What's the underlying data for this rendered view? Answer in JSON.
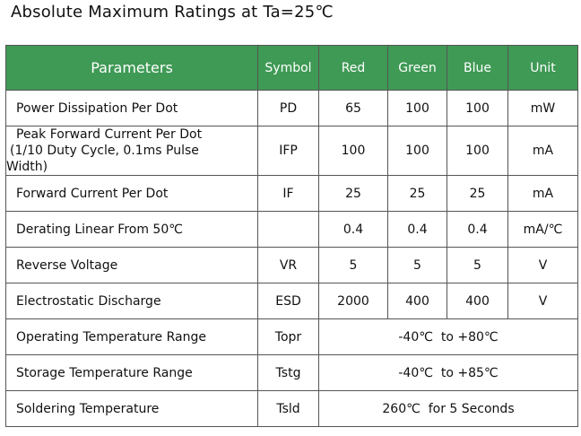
{
  "title": "Absolute Maximum Ratings at Ta=25℃",
  "header": {
    "parameters": "Parameters",
    "symbol": "Symbol",
    "red": "Red",
    "green": "Green",
    "blue": "Blue",
    "unit": "Unit"
  },
  "rows": [
    {
      "parameter": "Power Dissipation Per Dot",
      "symbol": "PD",
      "red": "65",
      "green": "100",
      "blue": "100",
      "unit": "mW"
    },
    {
      "parameter_lines": [
        "Peak Forward Current Per Dot",
        "(1/10 Duty Cycle, 0.1ms Pulse",
        "Width)"
      ],
      "symbol": "IFP",
      "red": "100",
      "green": "100",
      "blue": "100",
      "unit": "mA"
    },
    {
      "parameter": "Forward Current Per Dot",
      "symbol": "IF",
      "red": "25",
      "green": "25",
      "blue": "25",
      "unit": "mA"
    },
    {
      "parameter": "Derating Linear From 50℃",
      "symbol": "",
      "red": "0.4",
      "green": "0.4",
      "blue": "0.4",
      "unit": "mA/℃"
    },
    {
      "parameter": "Reverse Voltage",
      "symbol": "VR",
      "red": "5",
      "green": "5",
      "blue": "5",
      "unit": "V"
    },
    {
      "parameter": "Electrostatic Discharge",
      "symbol": "ESD",
      "red": "2000",
      "green": "400",
      "blue": "400",
      "unit": "V"
    },
    {
      "parameter": "Operating Temperature Range",
      "symbol": "Topr",
      "value": "-40℃  to +80℃"
    },
    {
      "parameter": "Storage Temperature Range",
      "symbol": "Tstg",
      "value": "-40℃  to +85℃"
    },
    {
      "parameter": "Soldering Temperature",
      "symbol": "Tsld",
      "value": "260℃  for 5 Seconds"
    }
  ],
  "colors": {
    "header_background": "#3f9a55",
    "header_text": "#ffffff",
    "border": "#555555"
  }
}
